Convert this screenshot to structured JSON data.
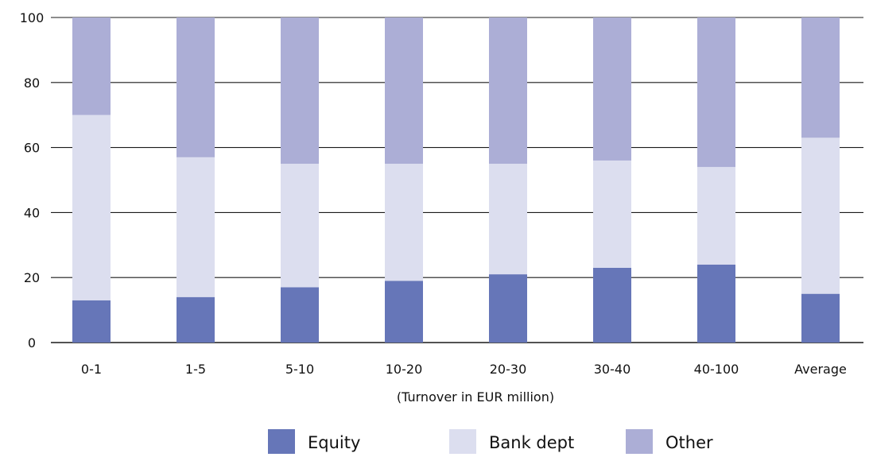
{
  "chart_data": {
    "type": "bar",
    "stacked": true,
    "title": "",
    "xlabel": "(Turnover in EUR million)",
    "ylabel": "",
    "ylim": [
      0,
      100
    ],
    "yticks": [
      0,
      20,
      40,
      60,
      80,
      100
    ],
    "grid": "horizontal",
    "legend_position": "bottom",
    "categories": [
      "0-1",
      "1-5",
      "5-10",
      "10-20",
      "20-30",
      "30-40",
      "40-100",
      "Average"
    ],
    "series": [
      {
        "name": "Equity",
        "color": "#6676b8",
        "values": [
          13,
          14,
          17,
          19,
          21,
          23,
          24,
          15
        ]
      },
      {
        "name": "Bank dept",
        "color": "#dcdeef",
        "values": [
          57,
          43,
          38,
          36,
          34,
          33,
          30,
          48
        ]
      },
      {
        "name": "Other",
        "color": "#acaed6",
        "values": [
          30,
          43,
          45,
          45,
          45,
          44,
          46,
          37
        ]
      }
    ]
  }
}
